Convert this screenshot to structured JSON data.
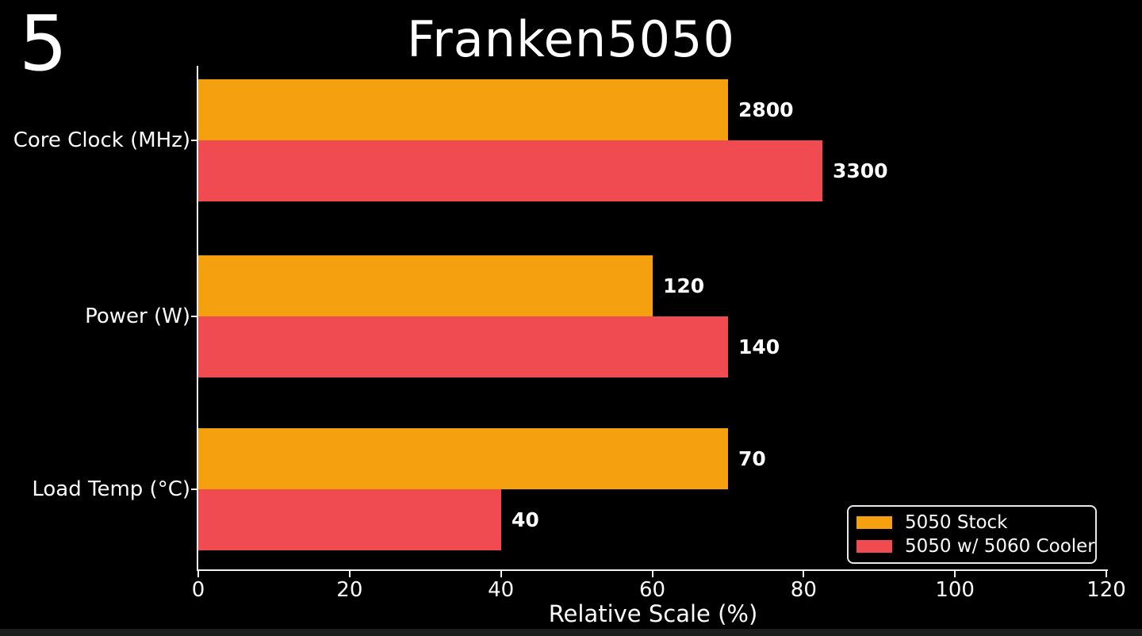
{
  "slide_number": "5",
  "colors": {
    "background": "#000000",
    "text": "#ffffff",
    "axis": "#f2f2f2",
    "legend_border": "#e8e8e8",
    "series_stock": "#f5a00f",
    "series_cooler": "#f04b50"
  },
  "chart_data": {
    "type": "bar",
    "orientation": "horizontal",
    "title": "Franken5050",
    "xlabel": "Relative Scale (%)",
    "xlim": [
      0,
      120
    ],
    "x_ticks": [
      0,
      20,
      40,
      60,
      80,
      100,
      120
    ],
    "grid": false,
    "legend_position": "lower right",
    "categories": [
      "Core Clock (MHz)",
      "Power (W)",
      "Load Temp (°C)"
    ],
    "series": [
      {
        "name": "5050 Stock",
        "color": "#f5a00f",
        "values": [
          2800,
          120,
          70
        ],
        "relative_pct": [
          70,
          60,
          70
        ]
      },
      {
        "name": "5050 w/ 5060 Cooler",
        "color": "#f04b50",
        "values": [
          3300,
          140,
          40
        ],
        "relative_pct": [
          82.5,
          70,
          40
        ]
      }
    ]
  }
}
